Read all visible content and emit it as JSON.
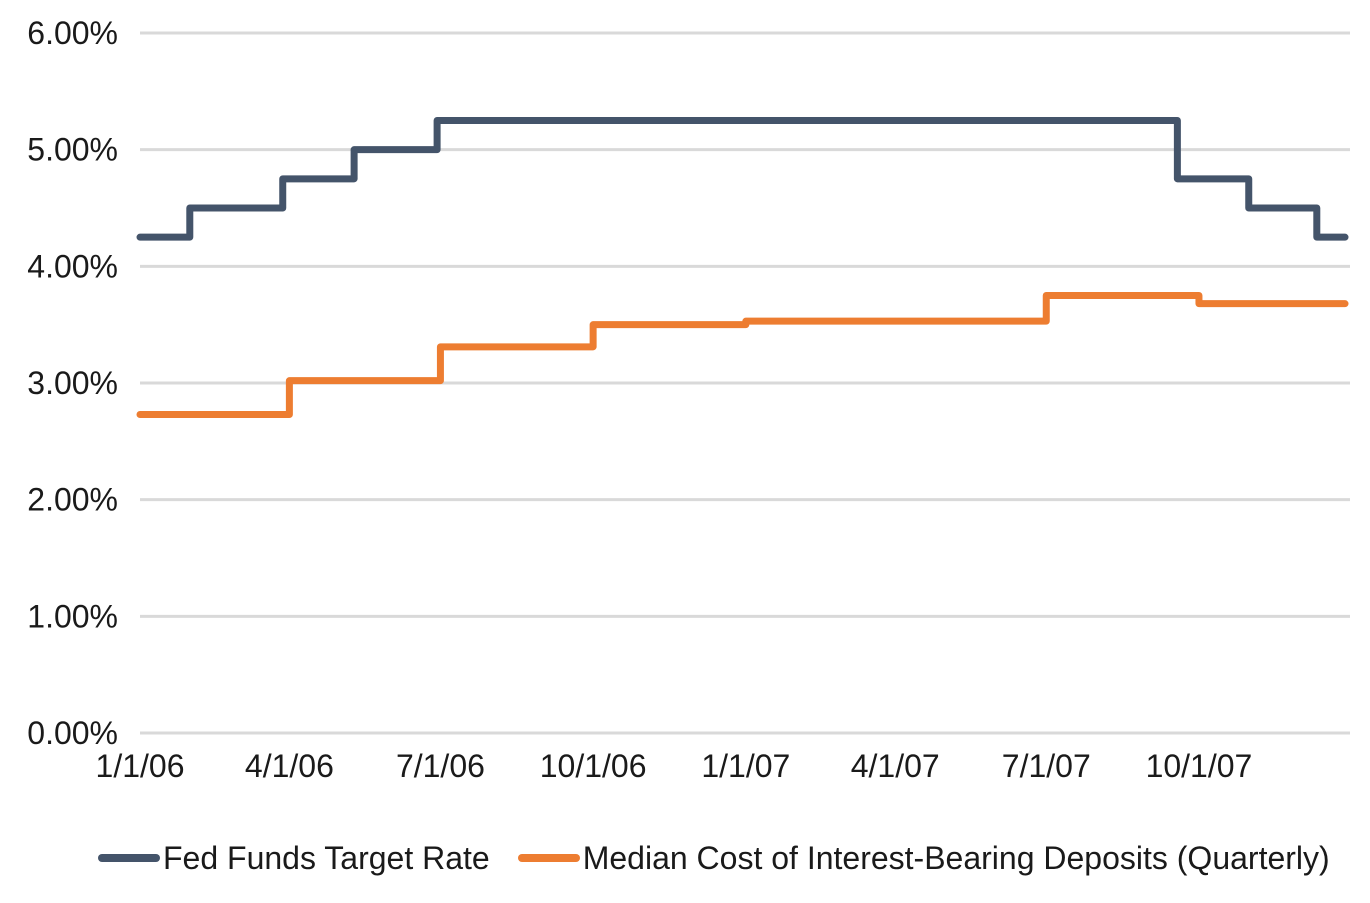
{
  "chart_data": {
    "type": "line",
    "step": true,
    "title": "",
    "grid": true,
    "legend_position": "bottom",
    "style": {
      "background": "#FFFFFF",
      "grid_color": "#D9D9D9",
      "text_color": "#1A1A1A",
      "line_width": 7
    },
    "y_axis": {
      "min": 0,
      "max": 6,
      "ticks": [
        {
          "label": "0.00%",
          "value": 0
        },
        {
          "label": "1.00%",
          "value": 1
        },
        {
          "label": "2.00%",
          "value": 2
        },
        {
          "label": "3.00%",
          "value": 3
        },
        {
          "label": "4.00%",
          "value": 4
        },
        {
          "label": "5.00%",
          "value": 5
        },
        {
          "label": "6.00%",
          "value": 6
        }
      ]
    },
    "x_axis": {
      "domain": [
        "2006-01-01",
        "2007-12-31"
      ],
      "ticks": [
        {
          "label": "1/1/06",
          "date": "2006-01-01"
        },
        {
          "label": "4/1/06",
          "date": "2006-04-01"
        },
        {
          "label": "7/1/06",
          "date": "2006-07-01"
        },
        {
          "label": "10/1/06",
          "date": "2006-10-01"
        },
        {
          "label": "1/1/07",
          "date": "2007-01-01"
        },
        {
          "label": "4/1/07",
          "date": "2007-04-01"
        },
        {
          "label": "7/1/07",
          "date": "2007-07-01"
        },
        {
          "label": "10/1/07",
          "date": "2007-10-01"
        }
      ]
    },
    "series": [
      {
        "name": "Fed Funds Target Rate",
        "color": "#44546A",
        "points": [
          {
            "date": "2006-01-01",
            "value": 4.25
          },
          {
            "date": "2006-01-31",
            "value": 4.5
          },
          {
            "date": "2006-03-28",
            "value": 4.75
          },
          {
            "date": "2006-05-10",
            "value": 5.0
          },
          {
            "date": "2006-06-29",
            "value": 5.25
          },
          {
            "date": "2007-09-18",
            "value": 4.75
          },
          {
            "date": "2007-10-31",
            "value": 4.5
          },
          {
            "date": "2007-12-11",
            "value": 4.25
          },
          {
            "date": "2007-12-28",
            "value": 4.25
          }
        ]
      },
      {
        "name": "Median Cost of Interest-Bearing Deposits (Quarterly)",
        "color": "#ED7D31",
        "points": [
          {
            "date": "2006-01-01",
            "value": 2.73
          },
          {
            "date": "2006-04-01",
            "value": 3.02
          },
          {
            "date": "2006-07-01",
            "value": 3.31
          },
          {
            "date": "2006-10-01",
            "value": 3.5
          },
          {
            "date": "2007-01-01",
            "value": 3.53
          },
          {
            "date": "2007-04-01",
            "value": 3.53
          },
          {
            "date": "2007-07-01",
            "value": 3.75
          },
          {
            "date": "2007-10-01",
            "value": 3.68
          },
          {
            "date": "2007-12-28",
            "value": 3.68
          }
        ]
      }
    ]
  }
}
